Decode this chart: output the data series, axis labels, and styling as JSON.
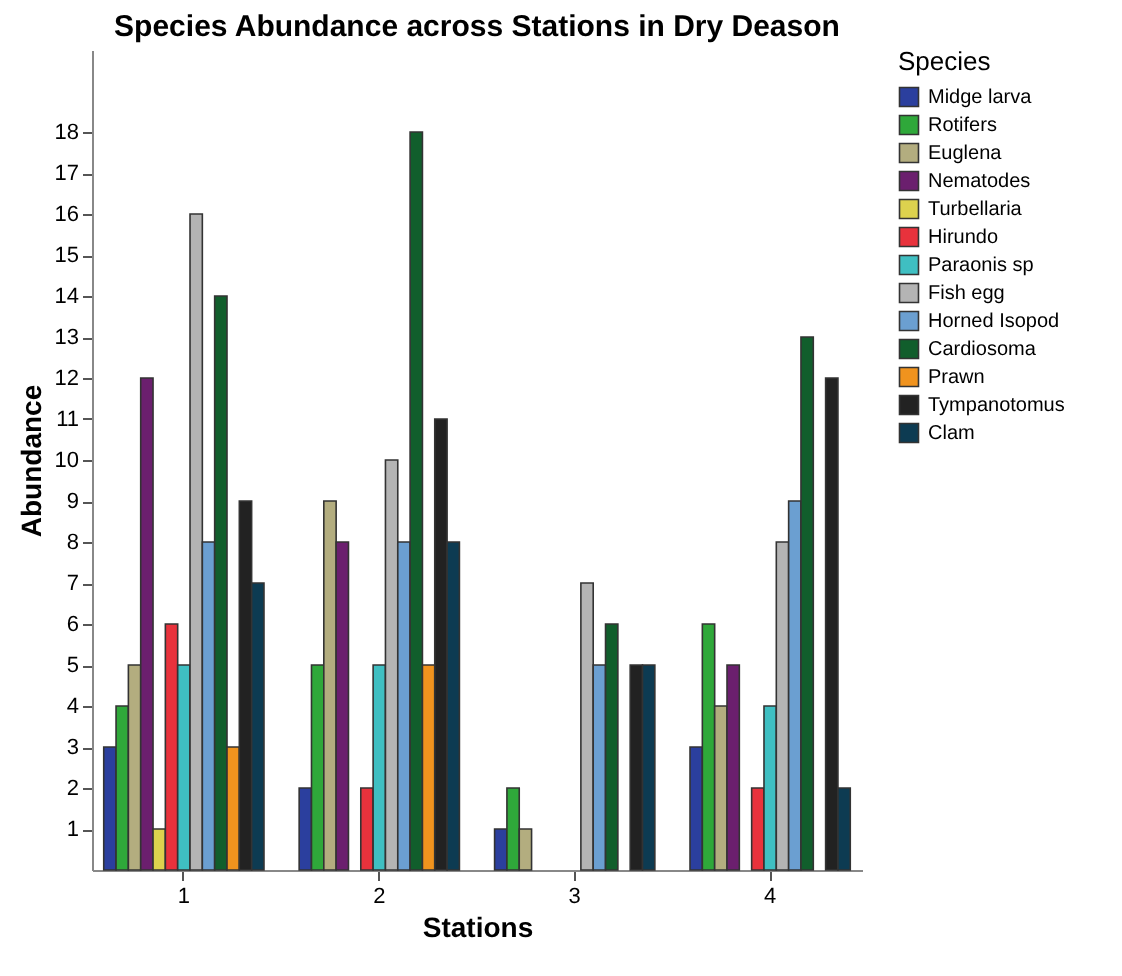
{
  "chart_data": {
    "type": "bar",
    "title": "Species Abundance across Stations in Dry Deason",
    "xlabel": "Stations",
    "ylabel": "Abundance",
    "legend_title": "Species",
    "legend": "right",
    "grid": false,
    "categories": [
      "1",
      "2",
      "3",
      "4"
    ],
    "ylim": [
      0,
      20
    ],
    "yticks": [
      1,
      2,
      3,
      4,
      5,
      6,
      7,
      8,
      9,
      10,
      11,
      12,
      13,
      14,
      15,
      16,
      17,
      18
    ],
    "series": [
      {
        "name": "Midge larva",
        "color": "#2b3f9e",
        "values": [
          3,
          2,
          1,
          3
        ]
      },
      {
        "name": "Rotifers",
        "color": "#2fa83a",
        "values": [
          4,
          5,
          2,
          6
        ]
      },
      {
        "name": "Euglena",
        "color": "#b3ad7f",
        "values": [
          5,
          9,
          1,
          4
        ]
      },
      {
        "name": "Nematodes",
        "color": "#6b1f6e",
        "values": [
          12,
          8,
          null,
          5
        ]
      },
      {
        "name": "Turbellaria",
        "color": "#ddd24e",
        "values": [
          1,
          null,
          null,
          null
        ]
      },
      {
        "name": "Hirundo",
        "color": "#e8323c",
        "values": [
          6,
          2,
          null,
          2
        ]
      },
      {
        "name": "Paraonis sp",
        "color": "#3fbfc2",
        "values": [
          5,
          5,
          null,
          4
        ]
      },
      {
        "name": "Fish egg",
        "color": "#b4b4b4",
        "values": [
          16,
          10,
          7,
          8
        ]
      },
      {
        "name": "Horned Isopod",
        "color": "#6b9fd1",
        "values": [
          8,
          8,
          5,
          9
        ]
      },
      {
        "name": "Cardiosoma",
        "color": "#115e2c",
        "values": [
          14,
          18,
          6,
          13
        ]
      },
      {
        "name": "Prawn",
        "color": "#f0931e",
        "values": [
          3,
          5,
          null,
          null
        ]
      },
      {
        "name": "Tympanotomus",
        "color": "#222222",
        "values": [
          9,
          11,
          5,
          12
        ]
      },
      {
        "name": "Clam",
        "color": "#0d3b52",
        "values": [
          7,
          8,
          5,
          2
        ]
      }
    ]
  }
}
